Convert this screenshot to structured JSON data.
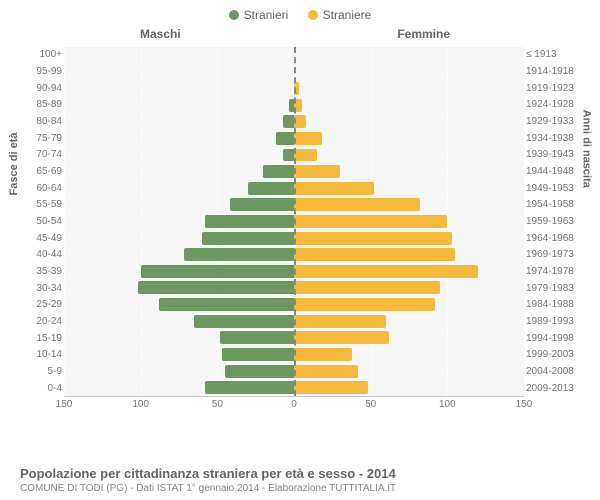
{
  "legend": {
    "male": {
      "label": "Stranieri",
      "color": "#6b9861"
    },
    "female": {
      "label": "Straniere",
      "color": "#f5b93d"
    }
  },
  "headers": {
    "male": "Maschi",
    "female": "Femmine"
  },
  "axis": {
    "left_title": "Fasce di età",
    "right_title": "Anni di nascita",
    "x_ticks": [
      150,
      100,
      50,
      0,
      50,
      100,
      150
    ],
    "x_max": 150
  },
  "chart": {
    "type": "population-pyramid",
    "grid_color": "#ffffff",
    "background": "#f6f6f6",
    "tick_color": "#888888",
    "bars": [
      {
        "age": "100+",
        "year": "≤ 1913",
        "m": 0,
        "f": 0
      },
      {
        "age": "95-99",
        "year": "1914-1918",
        "m": 0,
        "f": 0
      },
      {
        "age": "90-94",
        "year": "1919-1923",
        "m": 0,
        "f": 3
      },
      {
        "age": "85-89",
        "year": "1924-1928",
        "m": 3,
        "f": 5
      },
      {
        "age": "80-84",
        "year": "1929-1933",
        "m": 7,
        "f": 8
      },
      {
        "age": "75-79",
        "year": "1934-1938",
        "m": 12,
        "f": 18
      },
      {
        "age": "70-74",
        "year": "1939-1943",
        "m": 7,
        "f": 15
      },
      {
        "age": "65-69",
        "year": "1944-1948",
        "m": 20,
        "f": 30
      },
      {
        "age": "60-64",
        "year": "1949-1953",
        "m": 30,
        "f": 52
      },
      {
        "age": "55-59",
        "year": "1954-1958",
        "m": 42,
        "f": 82
      },
      {
        "age": "50-54",
        "year": "1959-1963",
        "m": 58,
        "f": 100
      },
      {
        "age": "45-49",
        "year": "1964-1968",
        "m": 60,
        "f": 103
      },
      {
        "age": "40-44",
        "year": "1969-1973",
        "m": 72,
        "f": 105
      },
      {
        "age": "35-39",
        "year": "1974-1978",
        "m": 100,
        "f": 120
      },
      {
        "age": "30-34",
        "year": "1979-1983",
        "m": 102,
        "f": 95
      },
      {
        "age": "25-29",
        "year": "1984-1988",
        "m": 88,
        "f": 92
      },
      {
        "age": "20-24",
        "year": "1989-1993",
        "m": 65,
        "f": 60
      },
      {
        "age": "15-19",
        "year": "1994-1998",
        "m": 48,
        "f": 62
      },
      {
        "age": "10-14",
        "year": "1999-2003",
        "m": 47,
        "f": 38
      },
      {
        "age": "5-9",
        "year": "2004-2008",
        "m": 45,
        "f": 42
      },
      {
        "age": "0-4",
        "year": "2009-2013",
        "m": 58,
        "f": 48
      }
    ]
  },
  "footer": {
    "title": "Popolazione per cittadinanza straniera per età e sesso - 2014",
    "subtitle": "COMUNE DI TODI (PG) - Dati ISTAT 1° gennaio 2014 - Elaborazione TUTTITALIA.IT"
  }
}
